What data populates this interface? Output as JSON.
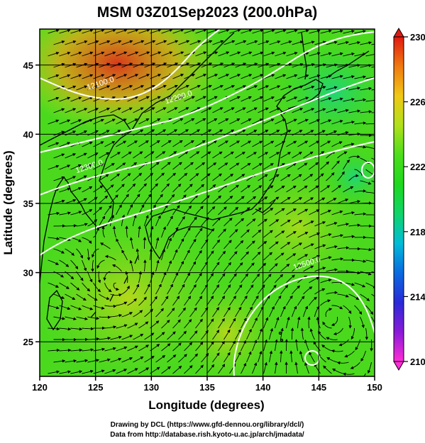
{
  "title": "MSM 03Z01Sep2023 (200.0hPa)",
  "xlabel": "Longitude (degrees)",
  "ylabel": "Latitude  (degrees)",
  "credits": [
    "Drawing by DCL (https://www.gfd-dennou.org/library/dcl/)",
    "Data from http://database.rish.kyoto-u.ac.jp/arch/jmadata/"
  ],
  "chart_data": {
    "type": "heatmap",
    "variable": "temperature with streamlines and geopotential height contours",
    "xlim": [
      120,
      150
    ],
    "ylim": [
      22.5,
      47.6
    ],
    "xticks": [
      120,
      125,
      130,
      135,
      140,
      145,
      150
    ],
    "yticks": [
      25,
      30,
      35,
      40,
      45
    ],
    "xtick_labels": [
      "120",
      "125",
      "130",
      "135",
      "140",
      "145",
      "150"
    ],
    "ytick_labels": [
      "25",
      "30",
      "35",
      "40",
      "45"
    ],
    "colorbar": {
      "min": 210,
      "max": 230,
      "tick_values": [
        230,
        226,
        222,
        218,
        214,
        210
      ],
      "tick_labels": [
        "230",
        "226",
        "222",
        "218",
        "214",
        "210"
      ],
      "colors": [
        "#ff2dd6",
        "#8a1ad8",
        "#2a2ad8",
        "#0a6ae0",
        "#00bcd8",
        "#10d46a",
        "#1ed81e",
        "#4cde1c",
        "#b0e01a",
        "#f0c816",
        "#f07a10",
        "#e01a10"
      ]
    },
    "contour_labels": [
      {
        "text": "12100.0",
        "lon": 125.5,
        "lat": 43.5
      },
      {
        "text": "12200.0",
        "lon": 132.5,
        "lat": 42.5
      },
      {
        "text": "12300.0",
        "lon": 124.5,
        "lat": 37.5
      },
      {
        "text": "12500.0",
        "lon": 144.0,
        "lat": 30.5
      }
    ],
    "features": [
      {
        "name": "anticyclone",
        "lon": 146,
        "lat": 27
      },
      {
        "name": "cyclonic-circulation",
        "lon": 127,
        "lat": 29
      }
    ]
  }
}
